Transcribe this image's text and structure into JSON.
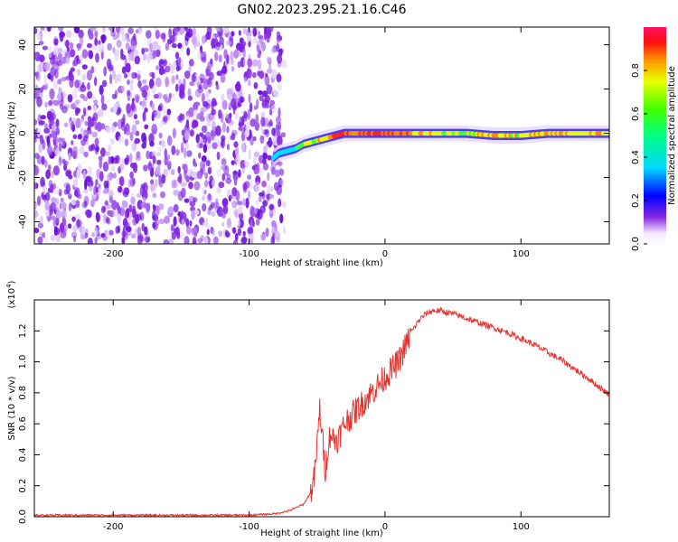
{
  "chart_data": [
    {
      "type": "heatmap",
      "title": "GN02.2023.295.21.16.C46",
      "xlabel": "Height of straight line (km)",
      "ylabel": "Frequency (Hz)",
      "xlim": [
        -258,
        165
      ],
      "ylim": [
        -50,
        48
      ],
      "x_ticks": [
        -200,
        -100,
        0,
        100
      ],
      "x_tick_labels": [
        "-200",
        "-100",
        "0",
        "100"
      ],
      "y_ticks": [
        -40,
        -20,
        0,
        20,
        40
      ],
      "y_tick_labels": [
        "-40",
        "-20",
        "0",
        "20",
        "40"
      ],
      "noise_region_x": [
        -258,
        -78
      ],
      "signal_track": {
        "x": [
          -82,
          -78,
          -72,
          -66,
          -60,
          -54,
          -48,
          -42,
          -36,
          -30,
          -24,
          -18,
          -12,
          -6,
          0,
          20,
          40,
          60,
          80,
          100,
          120,
          140,
          165
        ],
        "freq": [
          -11,
          -9,
          -8,
          -7,
          -5,
          -4,
          -3,
          -2,
          -1,
          0,
          0,
          0,
          0,
          0,
          0,
          0,
          0,
          0,
          -1,
          -1,
          0,
          0,
          0
        ],
        "amplitude": [
          0.45,
          0.45,
          0.55,
          0.6,
          0.7,
          0.75,
          0.8,
          0.85,
          0.95,
          0.9,
          0.85,
          0.95,
          0.95,
          0.9,
          0.95,
          0.85,
          0.75,
          0.75,
          0.85,
          0.75,
          0.85,
          0.8,
          0.8
        ]
      },
      "colorbar": {
        "label": "Normalized spectral amplitude",
        "range": [
          0,
          1
        ],
        "ticks": [
          0.0,
          0.2,
          0.4,
          0.6,
          0.8
        ],
        "tick_labels": [
          "0.0",
          "0.2",
          "0.4",
          "0.6",
          "0.8"
        ]
      }
    },
    {
      "type": "line",
      "xlabel": "Height of straight line (km)",
      "ylabel": "SNR (10 * v/v)",
      "y_scale_label": "(x10",
      "y_scale_exponent": "4",
      "y_scale_close": ")",
      "xlim": [
        -258,
        165
      ],
      "ylim": [
        0,
        1.4
      ],
      "x_ticks": [
        -200,
        -100,
        0,
        100
      ],
      "x_tick_labels": [
        "-200",
        "-100",
        "0",
        "100"
      ],
      "y_ticks": [
        0.0,
        0.2,
        0.4,
        0.6,
        0.8,
        1.0,
        1.2
      ],
      "y_tick_labels": [
        "0.0",
        "0.2",
        "0.4",
        "0.6",
        "0.8",
        "1.0",
        "1.2"
      ],
      "color": "#e8322f",
      "series": [
        {
          "x": [
            -258,
            -240,
            -220,
            -200,
            -180,
            -160,
            -140,
            -120,
            -100,
            -80,
            -70,
            -60,
            -55,
            -52,
            -50,
            -48,
            -46,
            -44,
            -42,
            -40,
            -38,
            -35,
            -32,
            -30,
            -25,
            -20,
            -15,
            -10,
            -5,
            0,
            5,
            10,
            15,
            20,
            25,
            30,
            35,
            40,
            45,
            50,
            60,
            70,
            80,
            90,
            100,
            110,
            120,
            130,
            140,
            150,
            160,
            165
          ],
          "values": [
            0.01,
            0.01,
            0.01,
            0.01,
            0.01,
            0.01,
            0.01,
            0.01,
            0.01,
            0.02,
            0.04,
            0.08,
            0.15,
            0.25,
            0.45,
            0.7,
            0.5,
            0.3,
            0.45,
            0.55,
            0.5,
            0.5,
            0.55,
            0.6,
            0.65,
            0.7,
            0.75,
            0.8,
            0.85,
            0.9,
            0.95,
            1.0,
            1.1,
            1.2,
            1.27,
            1.31,
            1.33,
            1.33,
            1.32,
            1.31,
            1.28,
            1.25,
            1.22,
            1.19,
            1.15,
            1.11,
            1.06,
            1.01,
            0.95,
            0.89,
            0.82,
            0.79
          ]
        }
      ]
    }
  ]
}
